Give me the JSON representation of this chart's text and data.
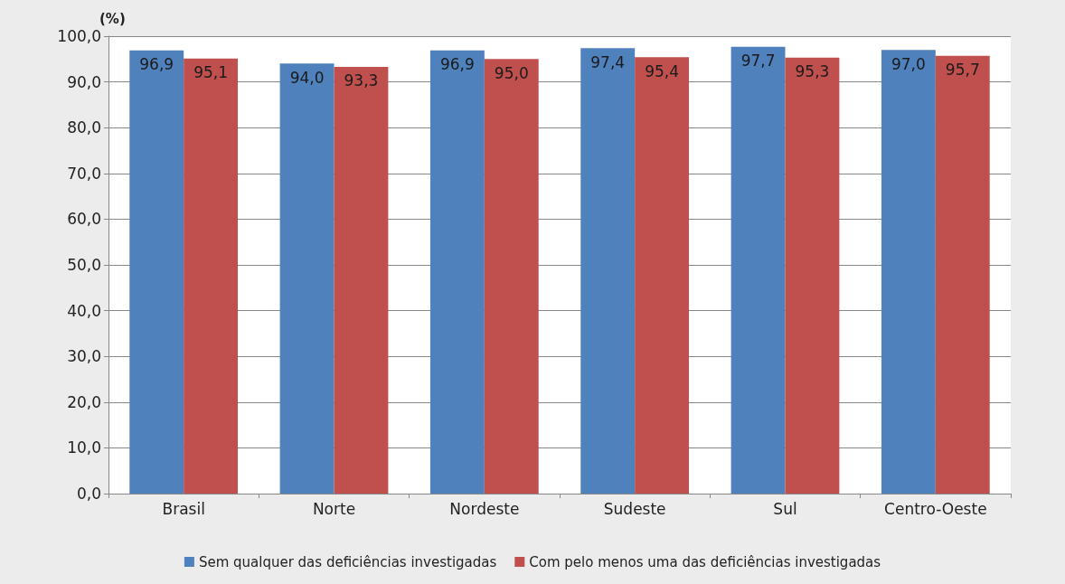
{
  "chart_data": {
    "type": "bar",
    "ylabel": "(%)",
    "categories": [
      "Brasil",
      "Norte",
      "Nordeste",
      "Sudeste",
      "Sul",
      "Centro-Oeste"
    ],
    "series": [
      {
        "name": "Sem qualquer das deficiências investigadas",
        "color": "#4f81bd",
        "values": [
          96.9,
          94.0,
          96.9,
          97.4,
          97.7,
          97.0
        ],
        "value_labels": [
          "96,9",
          "94,0",
          "96,9",
          "97,4",
          "97,7",
          "97,0"
        ]
      },
      {
        "name": "Com pelo menos uma das deficiências investigadas",
        "color": "#c0504d",
        "values": [
          95.1,
          93.3,
          95.0,
          95.4,
          95.3,
          95.7
        ],
        "value_labels": [
          "95,1",
          "93,3",
          "95,0",
          "95,4",
          "95,3",
          "95,7"
        ]
      }
    ],
    "ylim": [
      0,
      100
    ],
    "yticks": [
      {
        "value": 0,
        "label": "0,0"
      },
      {
        "value": 10,
        "label": "10,0"
      },
      {
        "value": 20,
        "label": "20,0"
      },
      {
        "value": 30,
        "label": "30,0"
      },
      {
        "value": 40,
        "label": "40,0"
      },
      {
        "value": 50,
        "label": "50,0"
      },
      {
        "value": 60,
        "label": "60,0"
      },
      {
        "value": 70,
        "label": "70,0"
      },
      {
        "value": 80,
        "label": "80,0"
      },
      {
        "value": 90,
        "label": "90,0"
      },
      {
        "value": 100,
        "label": "100,0"
      }
    ],
    "grid": "y",
    "legend": "bottom"
  }
}
